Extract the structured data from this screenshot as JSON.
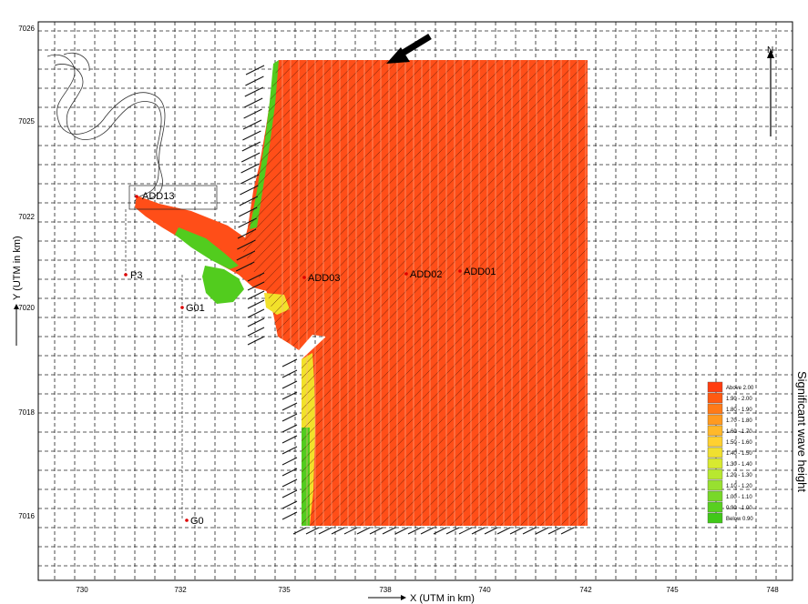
{
  "map": {
    "x_axis_label": "X (UTM in km)",
    "y_axis_label": "Y (UTM in km)",
    "x_ticks": [
      "730",
      "732",
      "735",
      "738",
      "740",
      "742",
      "745",
      "748"
    ],
    "y_ticks": [
      "7026",
      "7025",
      "7022",
      "7020",
      "7018",
      "7016"
    ],
    "north_label": "N",
    "legend_title": "Significant wave height",
    "legend_labels": [
      "Above 2.00",
      "1.90 - 2.00",
      "1.80 - 1.90",
      "1.70 - 1.80",
      "1.60 - 1.70",
      "1.50 - 1.60",
      "1.40 - 1.50",
      "1.30 - 1.40",
      "1.20 - 1.30",
      "1.10 - 1.20",
      "1.00 - 1.10",
      "0.90 - 1.00",
      "Below 0.90"
    ],
    "legend_colors": [
      "#ff3d10",
      "#ff5a12",
      "#ff7a18",
      "#ff9a20",
      "#ffb82a",
      "#ffd030",
      "#f0e030",
      "#d8ea30",
      "#b8e830",
      "#98e030",
      "#78d828",
      "#58d020",
      "#40c818"
    ],
    "stations": [
      "ADD13",
      "P3",
      "G01",
      "G0",
      "ADD03",
      "ADD02",
      "ADD01"
    ],
    "colors": {
      "domain": "#ff4e18",
      "grid": "#222222",
      "shore_green": "#52cc1e",
      "shore_yellow": "#f2e12a",
      "arrow": "#111111"
    }
  }
}
